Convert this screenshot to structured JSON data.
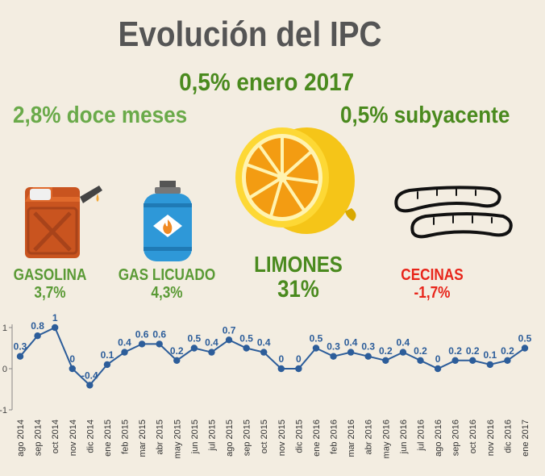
{
  "title": "Evolución del IPC",
  "headline": "0,5% enero 2017",
  "twelve_months": "2,8% doce meses",
  "core": "0,5% subyacente",
  "items": [
    {
      "name": "GASOLINA",
      "value": "3,7%",
      "color": "#5a9a35"
    },
    {
      "name": "GAS LICUADO",
      "value": "4,3%",
      "color": "#5a9a35"
    },
    {
      "name": "LIMONES",
      "value": "31%",
      "color": "#4a8a1e"
    },
    {
      "name": "CECINAS",
      "value": "-1,7%",
      "color": "#e8251a"
    }
  ],
  "icons": [
    "gas-can-icon",
    "gas-cylinder-icon",
    "lemon-icon",
    "sausages-icon"
  ],
  "colors": {
    "dark_green": "#4a8a1e",
    "light_green": "#6aaa4a",
    "red": "#e8251a",
    "line": "#2c5d9a",
    "background": "#f3ede1"
  },
  "chart_data": {
    "type": "line",
    "categories": [
      "ago 2014",
      "sep 2014",
      "oct 2014",
      "nov 2014",
      "dic 2014",
      "ene 2015",
      "feb 2015",
      "mar 2015",
      "abr 2015",
      "may 2015",
      "jun 2015",
      "jul 2015",
      "ago 2015",
      "sep 2015",
      "oct 2015",
      "nov 2015",
      "dic 2015",
      "ene 2016",
      "feb 2016",
      "mar 2016",
      "abr 2016",
      "may 2016",
      "jun 2016",
      "jul 2016",
      "ago 2016",
      "sep 2016",
      "oct 2016",
      "nov 2016",
      "dic 2016",
      "ene 2017"
    ],
    "values": [
      0.3,
      0.8,
      1,
      0,
      -0.4,
      0.1,
      0.4,
      0.6,
      0.6,
      0.2,
      0.5,
      0.4,
      0.7,
      0.5,
      0.4,
      0,
      0,
      0.5,
      0.3,
      0.4,
      0.3,
      0.2,
      0.4,
      0.2,
      0,
      0.2,
      0.2,
      0.1,
      0.2,
      0.5
    ],
    "data_labels": [
      "0.3",
      "0.8",
      "1",
      "0",
      "-0.4",
      "0.1",
      "0.4",
      "0.6",
      "0.6",
      "0.2",
      "0.5",
      "0.4",
      "0.7",
      "0.5",
      "0.4",
      "0",
      "0",
      "0.5",
      "0.3",
      "0.4",
      "0.3",
      "0.2",
      "0.4",
      "0.2",
      "0",
      "0.2",
      "0.2",
      "0.1",
      "0.2",
      "0.5"
    ],
    "yticks": [
      {
        "v": 1,
        "label": "1"
      },
      {
        "v": 0,
        "label": "0"
      },
      {
        "v": -1,
        "label": "-1"
      }
    ],
    "ylim": [
      -1,
      1
    ],
    "grid": false
  }
}
